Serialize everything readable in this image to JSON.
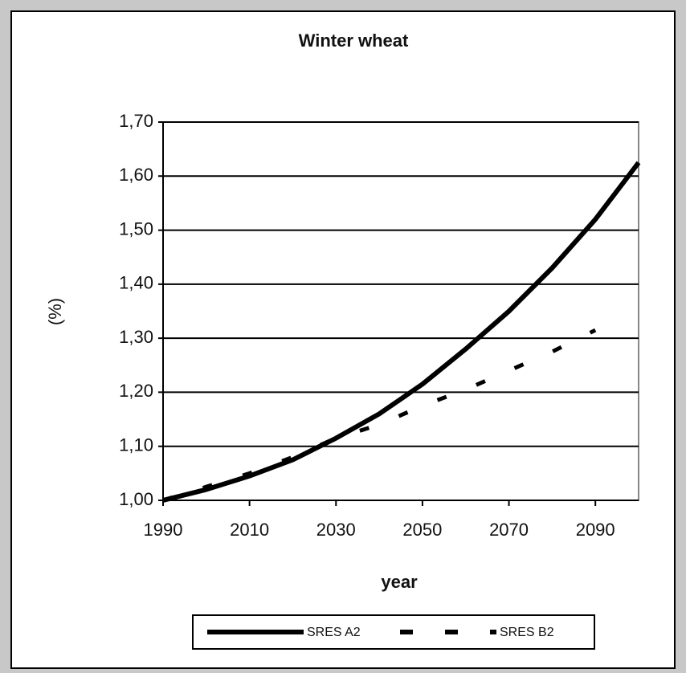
{
  "chart_data": {
    "type": "line",
    "title": "Winter wheat",
    "x_label": "year",
    "y_label": "(%)",
    "x": [
      1990,
      2000,
      2010,
      2020,
      2030,
      2040,
      2050,
      2060,
      2070,
      2080,
      2090,
      2100
    ],
    "series": [
      {
        "name": "SRES A2",
        "color": "#000000",
        "style": "solid",
        "values": [
          1.0,
          1.02,
          1.045,
          1.075,
          1.115,
          1.16,
          1.215,
          1.28,
          1.35,
          1.43,
          1.52,
          1.625
        ]
      },
      {
        "name": "SRES B2",
        "color": "#000000",
        "style": "dashed",
        "values": [
          1.0,
          1.025,
          1.05,
          1.08,
          1.115,
          1.14,
          1.175,
          1.205,
          1.24,
          1.275,
          1.315,
          null
        ]
      }
    ],
    "xlim": [
      1990,
      2100
    ],
    "xticks": [
      1990,
      2010,
      2030,
      2050,
      2070,
      2090
    ],
    "ylim": [
      1.0,
      1.7
    ],
    "yticks": [
      {
        "value": 1.0,
        "label": "1,00"
      },
      {
        "value": 1.1,
        "label": "1,10"
      },
      {
        "value": 1.2,
        "label": "1,20"
      },
      {
        "value": 1.3,
        "label": "1,30"
      },
      {
        "value": 1.4,
        "label": "1,40"
      },
      {
        "value": 1.5,
        "label": "1,50"
      },
      {
        "value": 1.6,
        "label": "1,60"
      },
      {
        "value": 1.7,
        "label": "1,70"
      }
    ],
    "grid": true,
    "legend": "bottom"
  }
}
